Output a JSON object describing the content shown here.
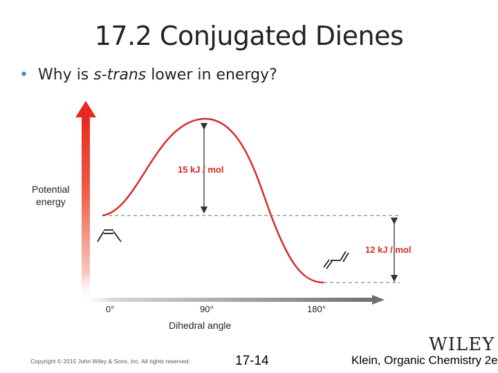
{
  "slide": {
    "title": "17.2 Conjugated Dienes",
    "bullet": {
      "before": "Why is ",
      "emphasis": "s-trans",
      "after": " lower in energy?"
    }
  },
  "diagram": {
    "y_axis_label_line1": "Potential",
    "y_axis_label_line2": "energy",
    "x_axis_label": "Dihedral angle",
    "x_ticks": [
      "0°",
      "90°",
      "180°"
    ],
    "barrier_label": "15 kJ / mol",
    "difference_label": "12 kJ / mol",
    "colors": {
      "curve": "#d62b27",
      "axis_arrow_top": "#e8291f",
      "x_axis": "#7a7a7a",
      "arrows": "#333333",
      "dashed": "#888888"
    }
  },
  "footer": {
    "copyright": "Copyright © 2015 John Wiley & Sons, Inc. All rights reserved.",
    "page_number": "17-14",
    "publisher": "WILEY",
    "book": "Klein, Organic Chemistry 2e"
  }
}
